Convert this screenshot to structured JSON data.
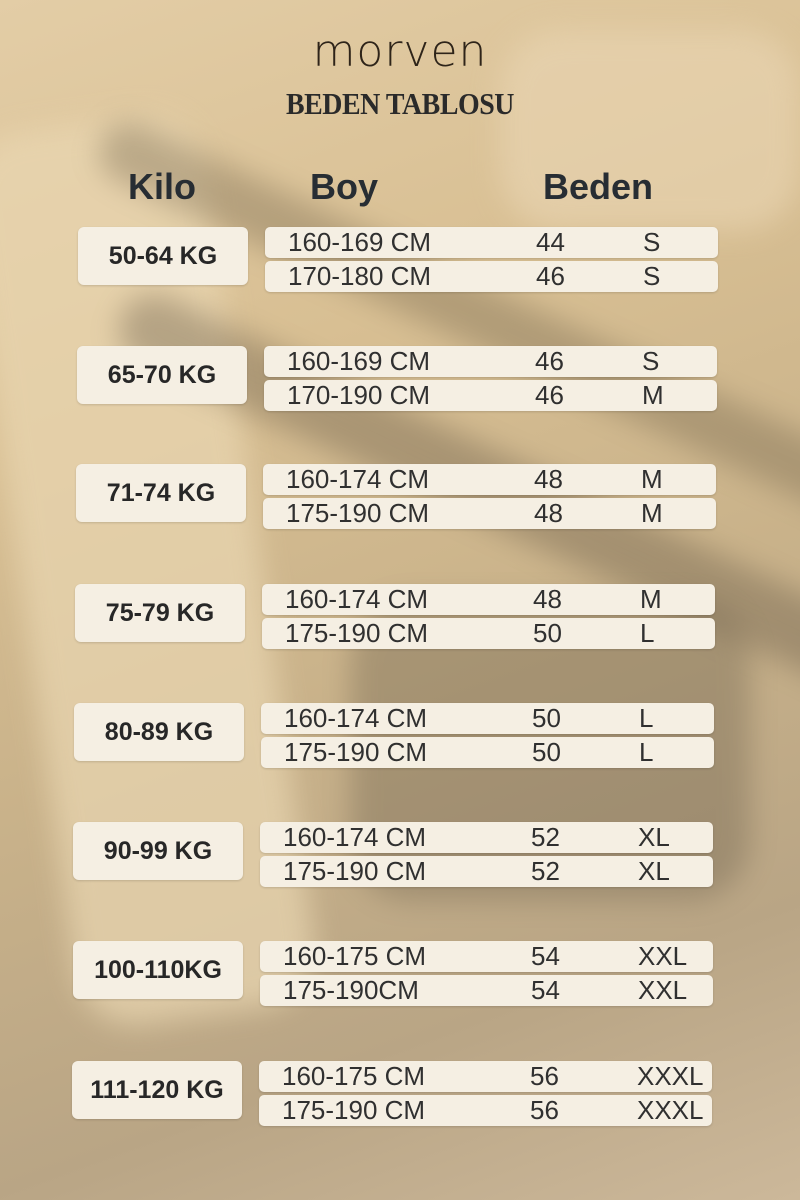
{
  "brand": "morven",
  "title": "BEDEN TABLOSU",
  "headers": {
    "kilo": "Kilo",
    "boy": "Boy",
    "beden": "Beden"
  },
  "groups": [
    {
      "kilo": "50-64 KG",
      "rows": [
        {
          "boy": "160-169 CM",
          "num": "44",
          "size": "S"
        },
        {
          "boy": "170-180 CM",
          "num": "46",
          "size": "S"
        }
      ]
    },
    {
      "kilo": "65-70 KG",
      "rows": [
        {
          "boy": "160-169 CM",
          "num": "46",
          "size": "S"
        },
        {
          "boy": "170-190 CM",
          "num": "46",
          "size": "M"
        }
      ]
    },
    {
      "kilo": "71-74 KG",
      "rows": [
        {
          "boy": "160-174 CM",
          "num": "48",
          "size": "M"
        },
        {
          "boy": "175-190 CM",
          "num": "48",
          "size": "M"
        }
      ]
    },
    {
      "kilo": "75-79 KG",
      "rows": [
        {
          "boy": "160-174 CM",
          "num": "48",
          "size": "M"
        },
        {
          "boy": "175-190 CM",
          "num": "50",
          "size": "L"
        }
      ]
    },
    {
      "kilo": "80-89 KG",
      "rows": [
        {
          "boy": "160-174 CM",
          "num": "50",
          "size": "L"
        },
        {
          "boy": "175-190 CM",
          "num": "50",
          "size": "L"
        }
      ]
    },
    {
      "kilo": "90-99 KG",
      "rows": [
        {
          "boy": "160-174 CM",
          "num": "52",
          "size": "XL"
        },
        {
          "boy": "175-190 CM",
          "num": "52",
          "size": "XL"
        }
      ]
    },
    {
      "kilo": "100-110KG",
      "rows": [
        {
          "boy": "160-175 CM",
          "num": "54",
          "size": "XXL"
        },
        {
          "boy": "175-190CM",
          "num": "54",
          "size": "XXL"
        }
      ]
    },
    {
      "kilo": "111-120 KG",
      "rows": [
        {
          "boy": "160-175 CM",
          "num": "56",
          "size": "XXXL"
        },
        {
          "boy": "175-190 CM",
          "num": "56",
          "size": "XXXL"
        }
      ]
    }
  ]
}
